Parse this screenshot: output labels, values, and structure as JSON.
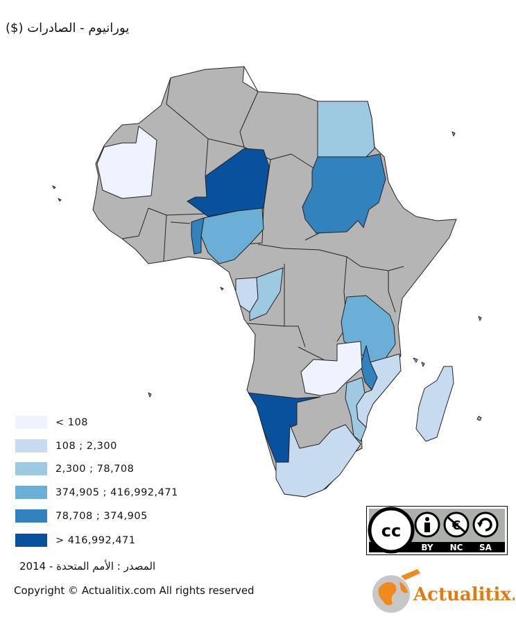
{
  "title": "يورانيوم - الصادرات ($)",
  "colors": {
    "no_data": "#b5b5b5",
    "border": "#222222",
    "ocean": "#ffffff"
  },
  "legend": {
    "items": [
      {
        "label": "< 108",
        "color": "#eff3ff"
      },
      {
        "label": "108 ; 2,300",
        "color": "#c6dbef"
      },
      {
        "label": "2,300 ; 78,708",
        "color": "#9ecae1"
      },
      {
        "label": "374,905 ; 416,992,471",
        "color": "#6baed6"
      },
      {
        "label": "78,708 ; 374,905",
        "color": "#3182bd"
      },
      {
        "label": "> 416,992,471",
        "color": "#08519c"
      }
    ]
  },
  "source": "المصدر : الأمم المتحدة - 2014",
  "copyright": "Copyright © Actualitix.com All rights reserved",
  "license": {
    "cc": "cc",
    "by": "BY",
    "nc": "NC",
    "sa": "SA"
  },
  "brand": {
    "name": "Actualitix."
  }
}
